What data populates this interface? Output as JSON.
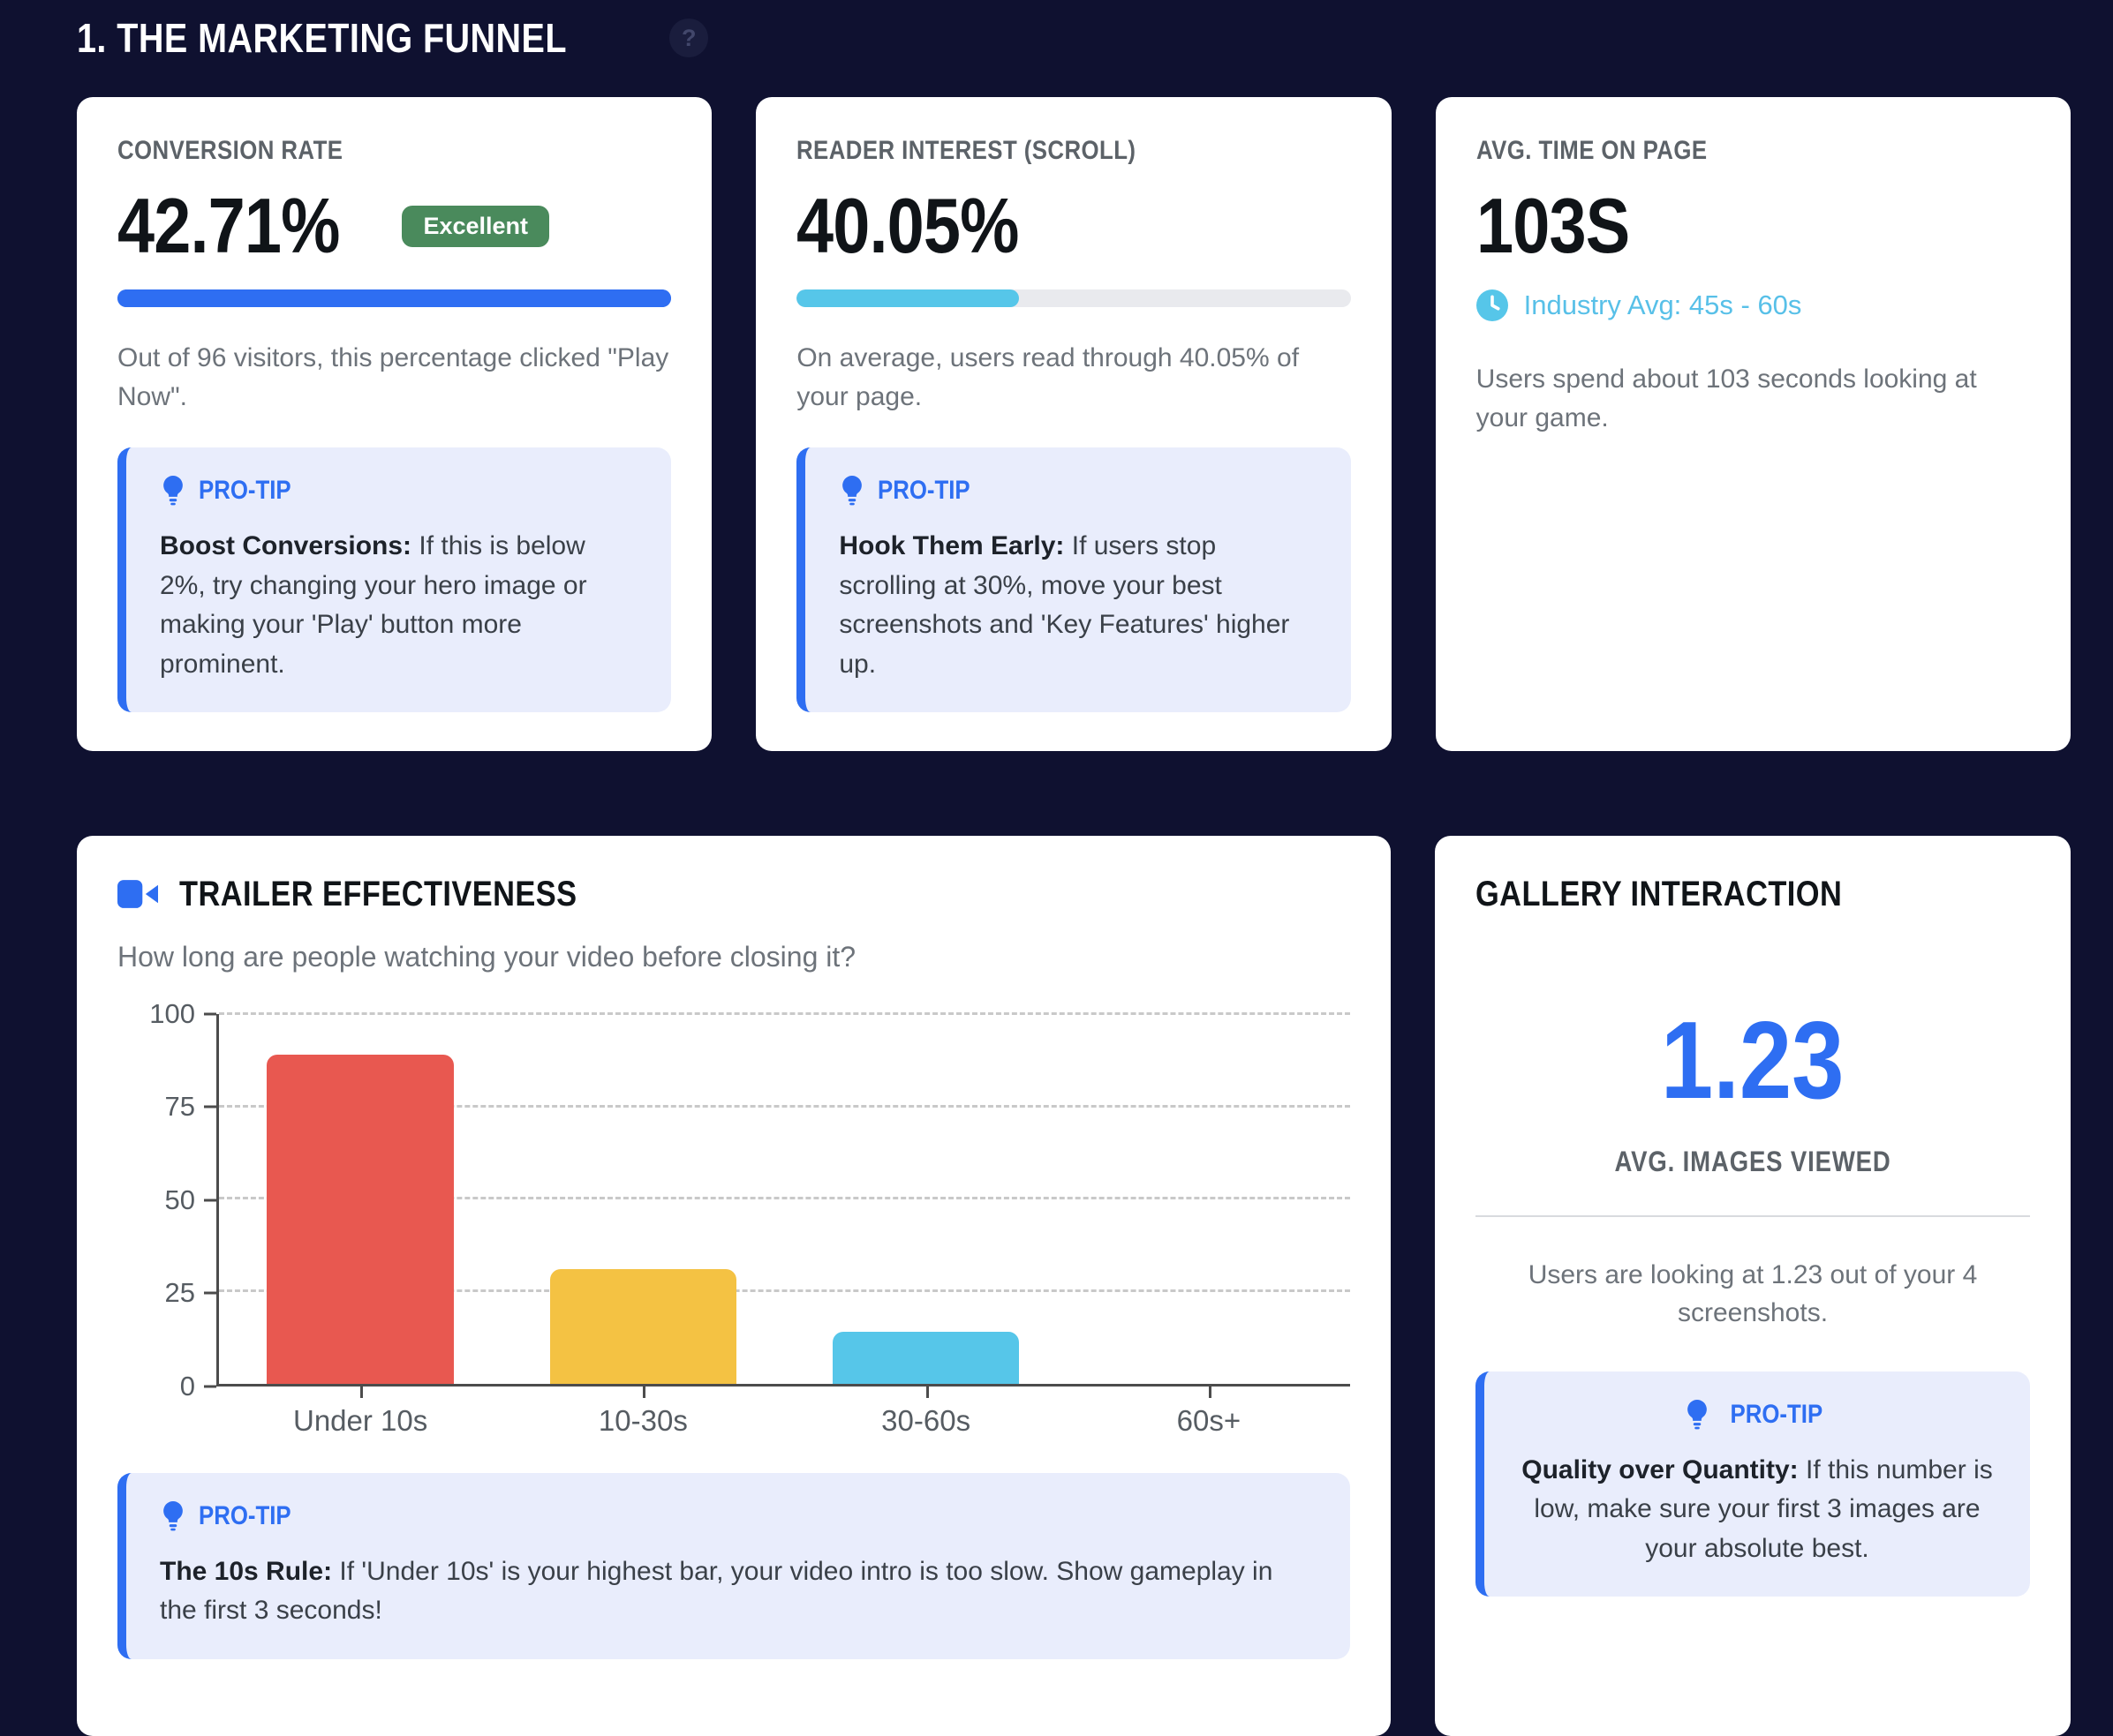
{
  "page": {
    "title": "1. THE MARKETING FUNNEL",
    "help_icon": "?"
  },
  "colors": {
    "background": "#0f1130",
    "accent_blue": "#2e6ef2",
    "cyan": "#56c6e9",
    "badge_green": "#4a8a5c",
    "bar_red": "#e85850",
    "bar_yellow": "#f4c243"
  },
  "cards": {
    "conversion": {
      "label": "CONVERSION RATE",
      "value": "42.71%",
      "badge": "Excellent",
      "progress_pct": 100,
      "description": "Out of 96 visitors, this percentage clicked \"Play Now\".",
      "protip": {
        "label": "PRO-TIP",
        "bold": "Boost Conversions:",
        "text": "If this is below 2%, try changing your hero image or making your 'Play' button more prominent."
      }
    },
    "reader": {
      "label": "READER INTEREST (SCROLL)",
      "value": "40.05%",
      "progress_pct": 40.05,
      "description": "On average, users read through 40.05% of your page.",
      "protip": {
        "label": "PRO-TIP",
        "bold": "Hook Them Early:",
        "text": "If users stop scrolling at 30%, move your best screenshots and 'Key Features' higher up."
      }
    },
    "time_on_page": {
      "label": "AVG. TIME ON PAGE",
      "value": "103S",
      "industry_avg": "Industry Avg: 45s - 60s",
      "description": "Users spend about 103 seconds looking at your game."
    },
    "trailer": {
      "title": "TRAILER EFFECTIVENESS",
      "subtitle": "How long are people watching your video before closing it?",
      "protip": {
        "label": "PRO-TIP",
        "bold": "The 10s Rule:",
        "text": "If 'Under 10s' is your highest bar, your video intro is too slow. Show gameplay in the first 3 seconds!"
      }
    },
    "gallery": {
      "title": "GALLERY INTERACTION",
      "value": "1.23",
      "value_label": "AVG. IMAGES VIEWED",
      "description": "Users are looking at 1.23 out of your 4 screenshots.",
      "protip": {
        "label": "PRO-TIP",
        "bold": "Quality over Quantity:",
        "text": "If this number is low, make sure your first 3 images are your absolute best."
      }
    }
  },
  "chart_data": {
    "type": "bar",
    "categories": [
      "Under 10s",
      "10-30s",
      "30-60s",
      "60s+"
    ],
    "values": [
      89,
      31,
      14,
      0
    ],
    "colors": [
      "#e85850",
      "#f4c243",
      "#56c6e9",
      "#cccccc"
    ],
    "title": "Trailer watch duration before closing",
    "xlabel": "",
    "ylabel": "",
    "ylim": [
      0,
      100
    ],
    "yticks": [
      0,
      25,
      50,
      75,
      100
    ],
    "grid": "dashed-horizontal",
    "legend": "none"
  }
}
